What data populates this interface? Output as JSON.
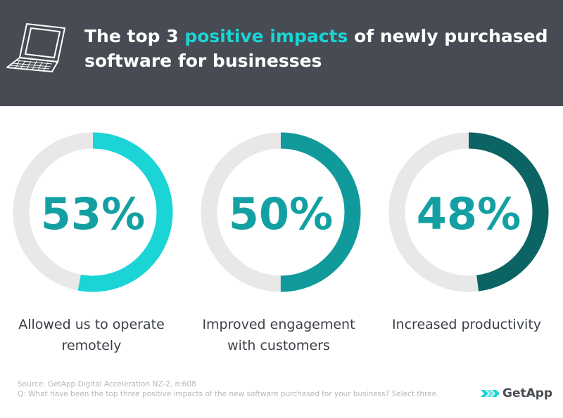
{
  "header": {
    "title_part1": "The top 3 ",
    "title_highlight": "positive impacts",
    "title_part2": " of newly purchased software for businesses",
    "highlight_color": "#1ad4d6",
    "icon": "laptop-icon"
  },
  "chart_data": {
    "type": "donut",
    "title": "The top 3 positive impacts of newly purchased software for businesses",
    "categories": [
      "Allowed us to operate remotely",
      "Improved engagement with customers",
      "Increased productivity"
    ],
    "values": [
      53,
      50,
      48
    ],
    "labels": [
      "53%",
      "50%",
      "48%"
    ],
    "unit": "%",
    "max": 100,
    "colors": [
      "#1ad4d6",
      "#109a9c",
      "#0b6463"
    ],
    "track_color": "#e8e8e9"
  },
  "footer": {
    "source": "Source: GetApp Digital Acceleration NZ-2, n:608",
    "question": "Q: What have been the top three positive impacts of the new software purchased for your business? Select three.",
    "logo_text": "GetApp",
    "logo_icon": "getapp-chevron-icon"
  }
}
